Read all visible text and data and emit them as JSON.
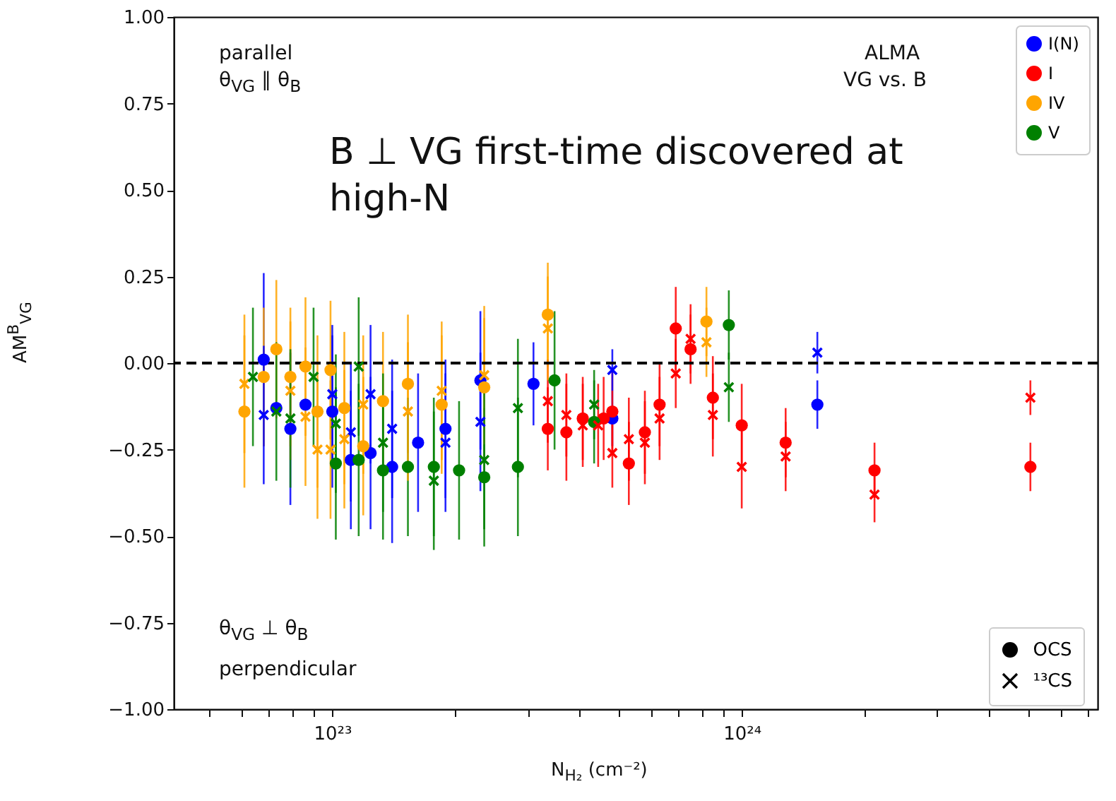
{
  "chart_data": {
    "type": "scatter",
    "xlabel": "N$_{H₂}$ (cm⁻²)",
    "ylabel": "AM$^{B}$$_{VG}$",
    "log": "x",
    "grid": false,
    "legend": "top right",
    "xlim": [
      4.1e+22,
      7.4e+24
    ],
    "xticks": [
      {
        "value": 5e+22,
        "label": null
      },
      {
        "value": 6e+22,
        "label": null
      },
      {
        "value": 7e+22,
        "label": null
      },
      {
        "value": 8e+22,
        "label": null
      },
      {
        "value": 9e+22,
        "label": null
      },
      {
        "value": 1e+23,
        "label": "10²³"
      },
      {
        "value": 2e+23,
        "label": null
      },
      {
        "value": 3e+23,
        "label": null
      },
      {
        "value": 4e+23,
        "label": null
      },
      {
        "value": 5e+23,
        "label": null
      },
      {
        "value": 6e+23,
        "label": null
      },
      {
        "value": 7e+23,
        "label": null
      },
      {
        "value": 8e+23,
        "label": null
      },
      {
        "value": 9e+23,
        "label": null
      },
      {
        "value": 1e+24,
        "label": "10²⁴"
      },
      {
        "value": 2e+24,
        "label": null
      },
      {
        "value": 3e+24,
        "label": null
      },
      {
        "value": 4e+24,
        "label": null
      },
      {
        "value": 5e+24,
        "label": null
      },
      {
        "value": 6e+24,
        "label": null
      },
      {
        "value": 7e+24,
        "label": null
      }
    ],
    "ylim": [
      -1,
      1
    ],
    "yticks": [
      {
        "value": -1,
        "label": "−1.00"
      },
      {
        "value": -0.75,
        "label": "−0.75"
      },
      {
        "value": -0.5,
        "label": "−0.50"
      },
      {
        "value": -0.25,
        "label": "−0.25"
      },
      {
        "value": 0,
        "label": "0.00"
      },
      {
        "value": 0.25,
        "label": "0.25"
      },
      {
        "value": 0.5,
        "label": "0.50"
      },
      {
        "value": 0.75,
        "label": "0.75"
      },
      {
        "value": 1,
        "label": "1.00"
      }
    ],
    "ref_lines": [
      {
        "axis": "y",
        "value": 0,
        "color": "#000000",
        "line_style": "dashed"
      }
    ],
    "annotations": [
      "parallel",
      "θ$_{VG}$ ∥ θ$_{B}$",
      "ALMA",
      "VG vs. B",
      "B ⊥ VG first-time discovered at high-N",
      "θ$_{VG}$ ⊥ θ$_{B}$",
      "perpendicular",
      "OCS",
      "¹³CS"
    ],
    "series": [
      {
        "name": "I(N)",
        "color": "#0000ff",
        "marker": "circle",
        "x": [
          6.8e+22,
          7.3e+22,
          7.9e+22,
          8.6e+22,
          1e+23,
          1.11e+23,
          1.24e+23,
          1.4e+23,
          1.62e+23,
          1.89e+23,
          2.3e+23,
          3.1e+23,
          4.83e+23,
          1.53e+24
        ],
        "values": [
          0.01,
          -0.13,
          -0.19,
          -0.12,
          -0.14,
          -0.28,
          -0.26,
          -0.3,
          -0.23,
          -0.19,
          -0.05,
          -0.06,
          -0.16,
          -0.12
        ],
        "errors": [
          0.25,
          null,
          0.22,
          null,
          0.22,
          0.2,
          0.22,
          0.22,
          0.2,
          0.2,
          0.2,
          0.12,
          0.08,
          0.07
        ]
      },
      {
        "name": "I",
        "color": "#ff0000",
        "marker": "circle",
        "x": [
          3.36e+23,
          3.73e+23,
          4.09e+23,
          4.6e+23,
          4.83e+23,
          5.3e+23,
          5.8e+23,
          6.3e+23,
          6.9e+23,
          7.5e+23,
          8.5e+23,
          1e+24,
          1.28e+24,
          2.11e+24,
          5.07e+24
        ],
        "values": [
          -0.19,
          -0.2,
          -0.16,
          -0.16,
          -0.14,
          -0.29,
          -0.2,
          -0.12,
          0.1,
          0.04,
          -0.1,
          -0.18,
          -0.23,
          -0.31,
          -0.3
        ],
        "errors": [
          0.12,
          0.14,
          0.12,
          0.12,
          0.12,
          0.12,
          0.12,
          0.12,
          0.12,
          0.1,
          0.12,
          0.12,
          0.1,
          0.08,
          0.07
        ]
      },
      {
        "name": "IV",
        "color": "#ffa500",
        "marker": "circle",
        "x": [
          6.1e+22,
          6.8e+22,
          7.3e+22,
          7.9e+22,
          8.6e+22,
          9.2e+22,
          9.9e+22,
          1.07e+23,
          1.19e+23,
          1.33e+23,
          1.53e+23,
          1.85e+23,
          2.35e+23,
          3.36e+23,
          8.2e+23
        ],
        "values": [
          -0.14,
          -0.04,
          0.04,
          -0.04,
          -0.01,
          -0.14,
          -0.02,
          -0.13,
          -0.24,
          -0.11,
          -0.06,
          -0.12,
          -0.07,
          0.14,
          0.12
        ],
        "errors": [
          0.22,
          0.2,
          0.2,
          0.2,
          0.2,
          0.22,
          0.2,
          0.22,
          0.2,
          0.2,
          0.2,
          0.2,
          0.2,
          0.15,
          0.1
        ]
      },
      {
        "name": "V",
        "color": "#008000",
        "marker": "circle",
        "x": [
          1.02e+23,
          1.16e+23,
          1.33e+23,
          1.53e+23,
          1.77e+23,
          2.04e+23,
          2.35e+23,
          2.84e+23,
          3.49e+23,
          4.36e+23,
          9.3e+23
        ],
        "values": [
          -0.29,
          -0.28,
          -0.31,
          -0.3,
          -0.3,
          -0.31,
          -0.33,
          -0.3,
          -0.05,
          -0.17,
          0.11
        ],
        "errors": [
          0.22,
          0.22,
          0.2,
          0.2,
          0.2,
          0.2,
          0.2,
          0.2,
          0.2,
          0.12,
          0.1
        ]
      },
      {
        "color": "#0000ff",
        "marker": "cross",
        "x": [
          6.8e+22,
          1e+23,
          1.11e+23,
          1.24e+23,
          1.4e+23,
          1.89e+23,
          2.3e+23,
          4.83e+23,
          1.53e+24
        ],
        "values": [
          -0.15,
          -0.09,
          -0.2,
          -0.09,
          -0.19,
          -0.23,
          -0.17,
          -0.02,
          0.03
        ],
        "errors": [
          0.2,
          0.2,
          0.2,
          0.2,
          0.2,
          0.2,
          0.2,
          0.06,
          0.06
        ]
      },
      {
        "color": "#ff0000",
        "marker": "cross",
        "x": [
          3.36e+23,
          3.73e+23,
          4.09e+23,
          4.46e+23,
          4.83e+23,
          5.3e+23,
          5.8e+23,
          6.3e+23,
          6.9e+23,
          7.5e+23,
          8.5e+23,
          1e+24,
          1.28e+24,
          2.11e+24,
          5.07e+24
        ],
        "values": [
          -0.11,
          -0.15,
          -0.18,
          -0.18,
          -0.26,
          -0.22,
          -0.23,
          -0.16,
          -0.03,
          0.07,
          -0.15,
          -0.3,
          -0.27,
          -0.38,
          -0.1
        ],
        "errors": [
          0.12,
          0.12,
          0.12,
          0.12,
          0.1,
          0.12,
          0.12,
          0.12,
          0.1,
          0.1,
          0.12,
          0.12,
          0.1,
          0.08,
          0.05
        ]
      },
      {
        "color": "#ffa500",
        "marker": "cross",
        "x": [
          6.1e+22,
          7.9e+22,
          8.6e+22,
          9.2e+22,
          9.9e+22,
          1.07e+23,
          1.19e+23,
          1.53e+23,
          1.85e+23,
          2.35e+23,
          3.36e+23,
          8.2e+23
        ],
        "values": [
          -0.06,
          -0.08,
          -0.155,
          -0.25,
          -0.25,
          -0.22,
          -0.12,
          -0.14,
          -0.08,
          -0.035,
          0.1,
          0.06
        ],
        "errors": [
          0.2,
          0.2,
          0.2,
          0.2,
          0.2,
          0.2,
          0.2,
          0.2,
          0.2,
          0.2,
          0.15,
          0.1
        ]
      },
      {
        "color": "#008000",
        "marker": "cross",
        "x": [
          6.4e+22,
          7.3e+22,
          7.9e+22,
          9e+22,
          1.02e+23,
          1.16e+23,
          1.33e+23,
          1.77e+23,
          2.35e+23,
          2.84e+23,
          4.36e+23,
          9.3e+23
        ],
        "values": [
          -0.04,
          -0.14,
          -0.16,
          -0.04,
          -0.175,
          -0.01,
          -0.23,
          -0.34,
          -0.28,
          -0.13,
          -0.12,
          -0.07
        ],
        "errors": [
          0.2,
          0.2,
          0.2,
          0.2,
          0.2,
          0.2,
          0.2,
          0.2,
          0.2,
          0.2,
          0.1,
          0.1
        ]
      }
    ]
  }
}
